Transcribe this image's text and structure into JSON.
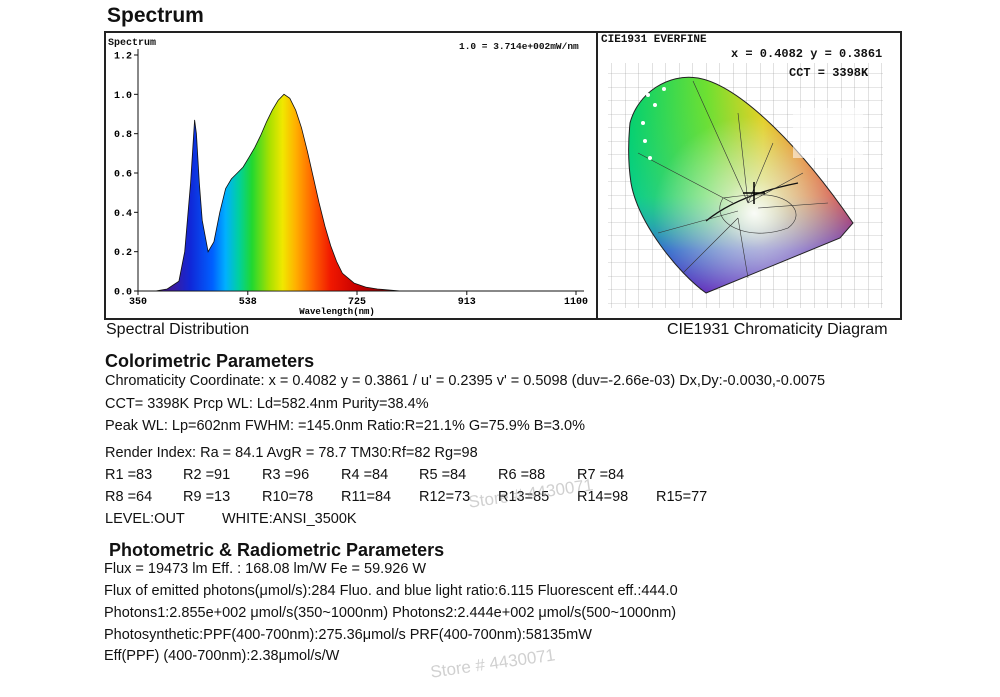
{
  "page": {
    "title": "Spectrum",
    "spectral_caption": "Spectral Distribution",
    "cie_caption": "CIE1931 Chromaticity Diagram"
  },
  "chart_data": [
    {
      "type": "line",
      "title": "Spectrum",
      "ylabel": "Spectrum",
      "xlabel": "Wavelength(nm)",
      "annotation": "1.0 = 3.714e+002mW/nm",
      "xlim": [
        350,
        1100
      ],
      "ylim": [
        0,
        1.2
      ],
      "x_ticks": [
        "350",
        "538",
        "725",
        "913",
        "1100"
      ],
      "y_ticks": [
        "0.0",
        "0.2",
        "0.4",
        "0.6",
        "0.8",
        "1.0",
        "1.2"
      ],
      "x": [
        350,
        380,
        400,
        420,
        430,
        440,
        447,
        450,
        455,
        460,
        470,
        480,
        490,
        500,
        510,
        520,
        530,
        540,
        550,
        560,
        570,
        580,
        590,
        600,
        610,
        620,
        630,
        640,
        650,
        660,
        670,
        680,
        690,
        700,
        720,
        740,
        760,
        780,
        800,
        850,
        900,
        1000,
        1100
      ],
      "values": [
        0.0,
        0.0,
        0.01,
        0.05,
        0.2,
        0.55,
        0.87,
        0.8,
        0.55,
        0.36,
        0.2,
        0.25,
        0.4,
        0.52,
        0.57,
        0.6,
        0.63,
        0.68,
        0.73,
        0.79,
        0.86,
        0.92,
        0.97,
        1.0,
        0.98,
        0.92,
        0.83,
        0.71,
        0.58,
        0.45,
        0.33,
        0.23,
        0.15,
        0.09,
        0.04,
        0.02,
        0.01,
        0.005,
        0.0,
        0.0,
        0.0,
        0.0,
        0.0
      ]
    },
    {
      "type": "scatter",
      "title": "CIE1931 EVERFINE",
      "annotations": [
        "x = 0.4082 y = 0.3861",
        "CCT = 3398K"
      ],
      "x": [
        0.4082
      ],
      "values": [
        0.3861
      ]
    }
  ],
  "colorimetric": {
    "title": "Colorimetric Parameters",
    "chromaticity": "Chromaticity Coordinate: x = 0.4082 y = 0.3861 / u' = 0.2395 v' = 0.5098 (duv=-2.66e-03)   Dx,Dy:-0.0030,-0.0075",
    "cct_line": "CCT=  3398K       Prcp WL:   Ld=582.4nm       Purity=38.4%",
    "peak_line": "Peak WL:  Lp=602nm  FWHM:   =145.0nm  Ratio:R=21.1% G=75.9% B=3.0%",
    "render_line": "Render Index: Ra = 84.1 AvgR = 78.7 TM30:Rf=82 Rg=98",
    "r_row1": [
      "R1 =83",
      "R2 =91",
      "R3 =96",
      "R4 =84",
      "R5 =84",
      "R6 =88",
      "R7 =84"
    ],
    "r_row2": [
      "R8 =64",
      "R9 =13",
      "R10=78",
      "R11=84",
      "R12=73",
      "R13=85",
      "R14=98",
      "R15=77"
    ],
    "level": "LEVEL:OUT",
    "white": "WHITE:ANSI_3500K"
  },
  "photometric": {
    "title": "Photometric & Radiometric Parameters",
    "lines": [
      "Flux = 19473 lm   Eff. : 168.08 lm/W  Fe  = 59.926 W",
      "Flux of emitted photons(μmol/s):284    Fluo. and blue light ratio:6.115   Fluorescent eff.:444.0",
      "Photons1:2.855e+002 μmol/s(350~1000nm) Photons2:2.444e+002 μmol/s(500~1000nm)",
      "Photosynthetic:PPF(400-700nm):275.36μmol/s PRF(400-700nm):58135mW",
      "Eff(PPF) (400-700nm):2.38μmol/s/W"
    ]
  },
  "watermarks": [
    "Store # 4430071",
    "Store # 4430071"
  ]
}
